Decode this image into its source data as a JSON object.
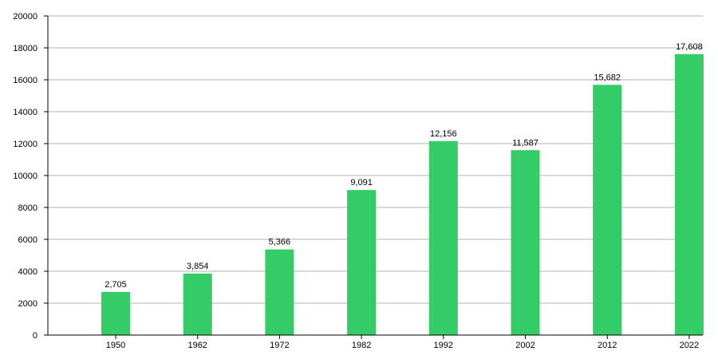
{
  "chart_data": {
    "type": "bar",
    "categories": [
      "1950",
      "1962",
      "1972",
      "1982",
      "1992",
      "2002",
      "2012",
      "2022"
    ],
    "values": [
      2705,
      3854,
      5366,
      9091,
      12156,
      11587,
      15682,
      17608
    ],
    "value_labels": [
      "2,705",
      "3,854",
      "5,366",
      "9,091",
      "12,156",
      "11,587",
      "15,682",
      "17,608"
    ],
    "title": "",
    "xlabel": "",
    "ylabel": "",
    "ylim": [
      0,
      20000
    ],
    "y_ticks": [
      0,
      2000,
      4000,
      6000,
      8000,
      10000,
      12000,
      14000,
      16000,
      18000,
      20000
    ],
    "y_tick_labels": [
      "0",
      "2000",
      "4000",
      "6000",
      "8000",
      "10000",
      "12000",
      "14000",
      "16000",
      "18000",
      "20000"
    ],
    "grid": true,
    "legend": "none",
    "colors": {
      "bar": "#33cc66",
      "grid": "#b3b3b3",
      "axis": "#000000",
      "text": "#000000"
    }
  }
}
